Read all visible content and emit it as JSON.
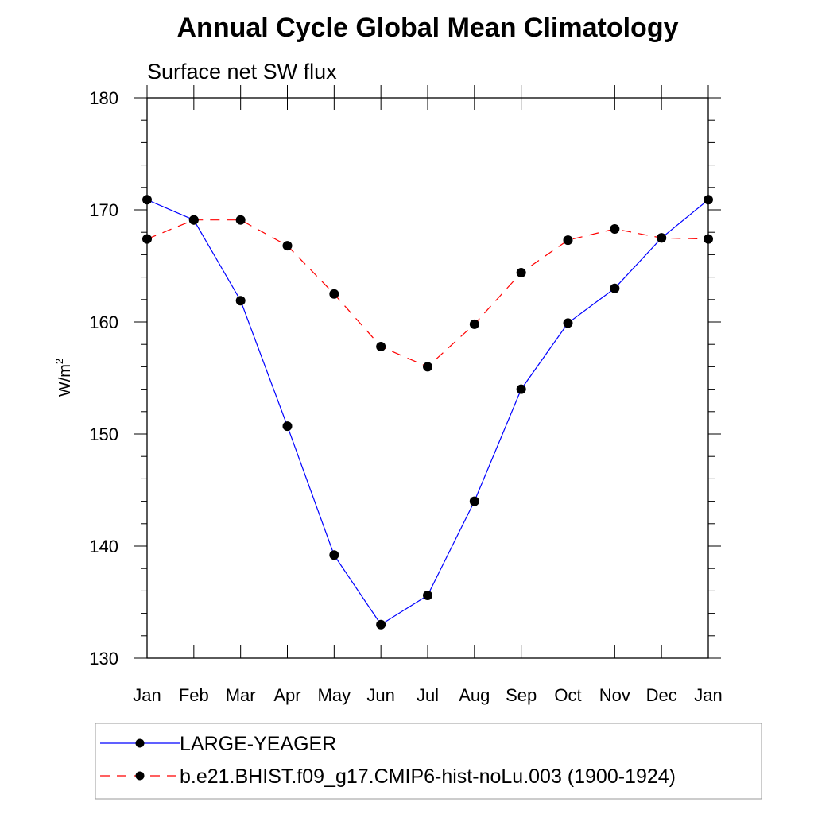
{
  "chart_data": {
    "type": "line",
    "title": "Annual Cycle Global Mean Climatology",
    "subtitle": "Surface net SW flux",
    "xlabel": "",
    "ylabel": "W/m",
    "ylabel_superscript": "2",
    "categories": [
      "Jan",
      "Feb",
      "Mar",
      "Apr",
      "May",
      "Jun",
      "Jul",
      "Aug",
      "Sep",
      "Oct",
      "Nov",
      "Dec",
      "Jan"
    ],
    "ylim": [
      130,
      180
    ],
    "yticks": [
      "130",
      "140",
      "150",
      "160",
      "170",
      "180"
    ],
    "grid": false,
    "legend_position": "bottom",
    "series": [
      {
        "name": "LARGE-YEAGER",
        "color": "#0000ff",
        "line_style": "solid",
        "marker": "filled-circle",
        "values": [
          170.9,
          169.1,
          161.9,
          150.7,
          139.2,
          133.0,
          135.6,
          144.0,
          154.0,
          159.9,
          163.0,
          167.5,
          170.9
        ]
      },
      {
        "name": "b.e21.BHIST.f09_g17.CMIP6-hist-noLu.003 (1900-1924)",
        "color": "#ff0000",
        "line_style": "dashed",
        "marker": "filled-circle",
        "values": [
          167.4,
          169.1,
          169.1,
          166.8,
          162.5,
          157.8,
          156.0,
          159.8,
          164.4,
          167.3,
          168.3,
          167.5,
          167.4
        ]
      }
    ]
  }
}
